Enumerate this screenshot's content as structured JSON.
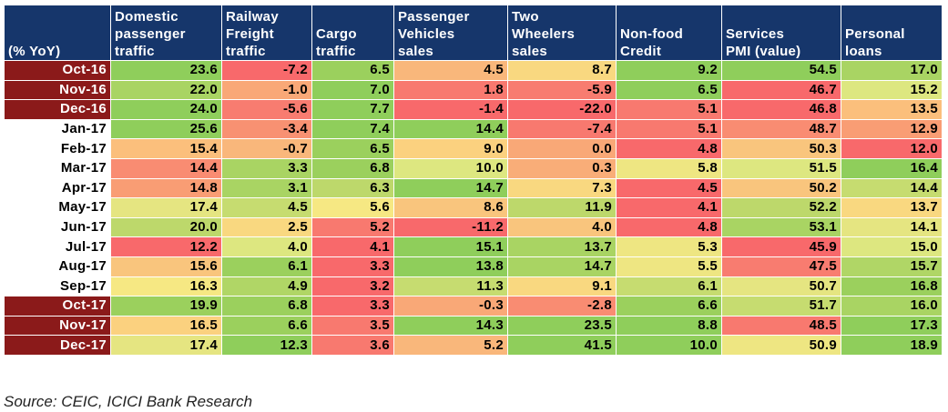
{
  "chart_data": {
    "type": "table",
    "corner_label": "(% YoY)",
    "columns": [
      "Domestic\npassenger\ntraffic",
      "Railway\nFreight\ntraffic",
      "Cargo\ntraffic",
      "Passenger\nVehicles\nsales",
      "Two\nWheelers\nsales",
      "Non-food\nCredit",
      "Services\nPMI (value)",
      "Personal\nloans"
    ],
    "rows": [
      {
        "label": "Oct-16",
        "highlight": true,
        "values": [
          "23.6",
          "-7.2",
          "6.5",
          "4.5",
          "8.7",
          "9.2",
          "54.5",
          "17.0"
        ],
        "colors": [
          "#8fce5b",
          "#f8696b",
          "#9bd05d",
          "#f9b77b",
          "#f9d880",
          "#8fce5b",
          "#8fce5b",
          "#a9d463"
        ]
      },
      {
        "label": "Nov-16",
        "highlight": true,
        "values": [
          "22.0",
          "-1.0",
          "7.0",
          "1.8",
          "-5.9",
          "6.5",
          "46.7",
          "15.2"
        ],
        "colors": [
          "#a9d463",
          "#f9a877",
          "#8fce5b",
          "#f8796f",
          "#f87c70",
          "#8fce5b",
          "#f8696b",
          "#dde780"
        ]
      },
      {
        "label": "Dec-16",
        "highlight": true,
        "values": [
          "24.0",
          "-5.6",
          "7.7",
          "-1.4",
          "-22.0",
          "5.1",
          "46.8",
          "13.5"
        ],
        "colors": [
          "#8fce5b",
          "#f87c70",
          "#8fce5b",
          "#f8696b",
          "#f8696b",
          "#f8796f",
          "#f8696b",
          "#fbbf7c"
        ]
      },
      {
        "label": "Jan-17",
        "highlight": false,
        "values": [
          "25.6",
          "-3.4",
          "7.4",
          "14.4",
          "-7.4",
          "5.1",
          "48.7",
          "12.9"
        ],
        "colors": [
          "#8fce5b",
          "#f89172",
          "#8fce5b",
          "#8fce5b",
          "#f8796f",
          "#f8796f",
          "#f98c72",
          "#f99d74"
        ]
      },
      {
        "label": "Feb-17",
        "highlight": false,
        "values": [
          "15.4",
          "-0.7",
          "6.5",
          "9.0",
          "0.0",
          "4.8",
          "50.3",
          "12.0"
        ],
        "colors": [
          "#fbbf7c",
          "#f9b77b",
          "#9bd05d",
          "#fbd17f",
          "#f9a877",
          "#f8696b",
          "#f9c57d",
          "#f8696b"
        ]
      },
      {
        "label": "Mar-17",
        "highlight": false,
        "values": [
          "14.4",
          "3.3",
          "6.8",
          "10.0",
          "0.3",
          "5.8",
          "51.5",
          "16.4"
        ],
        "colors": [
          "#f98c72",
          "#a9d463",
          "#9bd05d",
          "#dde780",
          "#f9ad78",
          "#eee682",
          "#dde780",
          "#8fce5b"
        ]
      },
      {
        "label": "Apr-17",
        "highlight": false,
        "values": [
          "14.8",
          "3.1",
          "6.3",
          "14.7",
          "7.3",
          "4.5",
          "50.2",
          "14.4"
        ],
        "colors": [
          "#f99d74",
          "#a9d463",
          "#bdd86b",
          "#8fce5b",
          "#f9d880",
          "#f8696b",
          "#f9c57d",
          "#c6dc70"
        ]
      },
      {
        "label": "May-17",
        "highlight": false,
        "values": [
          "17.4",
          "4.5",
          "5.6",
          "8.6",
          "11.9",
          "4.1",
          "52.2",
          "13.7"
        ],
        "colors": [
          "#e5e581",
          "#c6dc70",
          "#f6e883",
          "#f9c57d",
          "#bdd86b",
          "#f8696b",
          "#bdd86b",
          "#f9d880"
        ]
      },
      {
        "label": "Jun-17",
        "highlight": false,
        "values": [
          "20.0",
          "2.5",
          "5.2",
          "-11.2",
          "4.0",
          "4.8",
          "53.1",
          "14.1"
        ],
        "colors": [
          "#bdd86b",
          "#f9d880",
          "#f8796f",
          "#f8696b",
          "#f9c57d",
          "#f8696b",
          "#a9d463",
          "#e5e581"
        ]
      },
      {
        "label": "Jul-17",
        "highlight": false,
        "values": [
          "12.2",
          "4.0",
          "4.1",
          "15.1",
          "13.7",
          "5.3",
          "45.9",
          "15.0"
        ],
        "colors": [
          "#f8696b",
          "#dde780",
          "#f8696b",
          "#8fce5b",
          "#a9d463",
          "#eee682",
          "#f8696b",
          "#dde780"
        ]
      },
      {
        "label": "Aug-17",
        "highlight": false,
        "values": [
          "15.6",
          "6.1",
          "3.3",
          "13.8",
          "14.7",
          "5.5",
          "47.5",
          "15.7"
        ],
        "colors": [
          "#f9c57d",
          "#9bd05d",
          "#f8696b",
          "#8fce5b",
          "#a9d463",
          "#eee682",
          "#f87c70",
          "#b0d666"
        ]
      },
      {
        "label": "Sep-17",
        "highlight": false,
        "values": [
          "16.3",
          "4.9",
          "3.2",
          "11.3",
          "9.1",
          "6.1",
          "50.7",
          "16.8"
        ],
        "colors": [
          "#f6e883",
          "#b0d666",
          "#f8696b",
          "#c6dc70",
          "#f9d880",
          "#c6dc70",
          "#e5e581",
          "#9bd05d"
        ]
      },
      {
        "label": "Oct-17",
        "highlight": true,
        "values": [
          "19.9",
          "6.8",
          "3.3",
          "-0.3",
          "-2.8",
          "6.6",
          "51.7",
          "16.0"
        ],
        "colors": [
          "#9bd05d",
          "#9bd05d",
          "#f8696b",
          "#f9a877",
          "#f98c72",
          "#9bd05d",
          "#c6dc70",
          "#a9d463"
        ]
      },
      {
        "label": "Nov-17",
        "highlight": true,
        "values": [
          "16.5",
          "6.6",
          "3.5",
          "14.3",
          "23.5",
          "8.8",
          "48.5",
          "17.3"
        ],
        "colors": [
          "#fbd17f",
          "#9bd05d",
          "#f8796f",
          "#8fce5b",
          "#8fce5b",
          "#8fce5b",
          "#f8796f",
          "#8fce5b"
        ]
      },
      {
        "label": "Dec-17",
        "highlight": true,
        "values": [
          "17.4",
          "12.3",
          "3.6",
          "5.2",
          "41.5",
          "10.0",
          "50.9",
          "18.9"
        ],
        "colors": [
          "#e5e581",
          "#8fce5b",
          "#f8796f",
          "#f9b77b",
          "#8fce5b",
          "#8fce5b",
          "#eee682",
          "#8fce5b"
        ]
      }
    ]
  },
  "source": "Source: CEIC, ICICI Bank Research"
}
